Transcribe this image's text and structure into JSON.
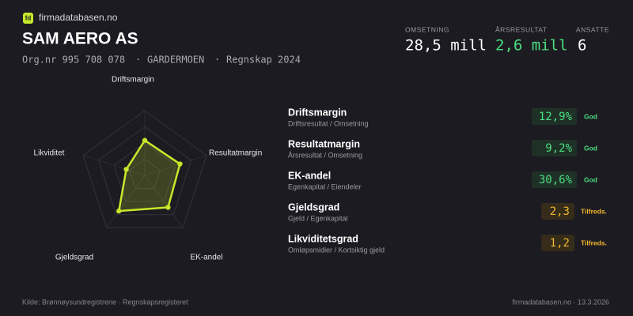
{
  "header": {
    "brand": "firmadatabasen.no",
    "title": "SAM AERO AS",
    "orgnr": "Org.nr 995 708 078",
    "location": "GARDERMOEN",
    "period": "Regnskap 2024"
  },
  "kpis": [
    {
      "label": "OMSETNING",
      "value": "28,5 mill"
    },
    {
      "label": "ÅRSRESULTAT",
      "value": "2,6 mill"
    },
    {
      "label": "ANSATTE",
      "value": "6"
    }
  ],
  "chart_data": {
    "type": "radar",
    "categories": [
      "Driftsmargin",
      "Resultatmargin",
      "EK-andel",
      "Gjeldsgrad",
      "Likviditet"
    ],
    "values": [
      54,
      57,
      61,
      68,
      30
    ],
    "rlim": [
      0,
      100
    ],
    "color": "#c6e82b"
  },
  "metrics": [
    {
      "name": "Driftsmargin",
      "formula": "Driftsresultat / Omsetning",
      "value": "12,9%",
      "rating": "God"
    },
    {
      "name": "Resultatmargin",
      "formula": "Årsresultat / Omsetning",
      "value": "9,2%",
      "rating": "God"
    },
    {
      "name": "EK-andel",
      "formula": "Egenkapital / Eiendeler",
      "value": "30,6%",
      "rating": "God"
    },
    {
      "name": "Gjeldsgrad",
      "formula": "Gjeld / Egenkapital",
      "value": "2,3",
      "rating": "Tilfreds."
    },
    {
      "name": "Likviditetsgrad",
      "formula": "Omløpsmidler / Kortsiktig gjeld",
      "value": "1,2",
      "rating": "Tilfreds."
    }
  ],
  "footer": {
    "source": "Kilde: Brønnøysundregistrene · Regnskapsregisteret",
    "site": "firmadatabasen.no · 13.3.2026"
  }
}
